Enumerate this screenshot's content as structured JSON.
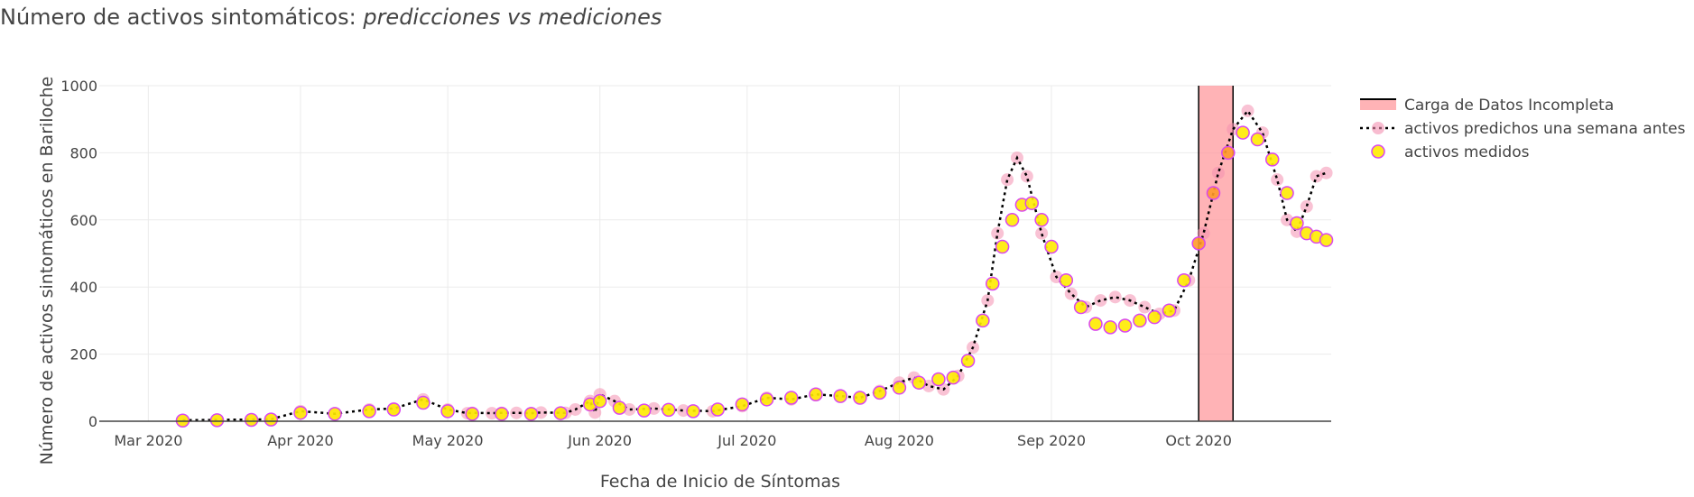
{
  "chart_data": {
    "type": "line",
    "title": "Número de activos sintomáticos: ",
    "title_italic": "predicciones vs mediciones",
    "xlabel": "Fecha de Inicio de Síntomas",
    "ylabel": "Número de activos sintomáticos en Bariloche",
    "x_axis_type": "date",
    "xlim": [
      "2020-02-20",
      "2020-10-28"
    ],
    "ylim": [
      0,
      1000
    ],
    "yticks": [
      0,
      200,
      400,
      600,
      800,
      1000
    ],
    "xticks": [
      {
        "date": "2020-03-01",
        "label": "Mar 2020"
      },
      {
        "date": "2020-04-01",
        "label": "Apr 2020"
      },
      {
        "date": "2020-05-01",
        "label": "May 2020"
      },
      {
        "date": "2020-06-01",
        "label": "Jun 2020"
      },
      {
        "date": "2020-07-01",
        "label": "Jul 2020"
      },
      {
        "date": "2020-08-01",
        "label": "Aug 2020"
      },
      {
        "date": "2020-09-01",
        "label": "Sep 2020"
      },
      {
        "date": "2020-10-01",
        "label": "Oct 2020"
      }
    ],
    "grid": true,
    "legend_position": "top-right",
    "shaded_region": {
      "name": "Carga de Datos Incompleta",
      "x_start": "2020-10-01",
      "x_end": "2020-10-08",
      "color": "#ff9a9e"
    },
    "series": [
      {
        "name": "activos predichos una semana antes",
        "style": "dotted-line-with-markers",
        "line_color": "#000000",
        "marker_color": "#f48fb1",
        "points": [
          [
            "2020-03-08",
            3
          ],
          [
            "2020-03-15",
            4
          ],
          [
            "2020-03-22",
            5
          ],
          [
            "2020-03-26",
            6
          ],
          [
            "2020-04-01",
            30
          ],
          [
            "2020-04-08",
            22
          ],
          [
            "2020-04-15",
            35
          ],
          [
            "2020-04-20",
            38
          ],
          [
            "2020-04-26",
            65
          ],
          [
            "2020-05-01",
            35
          ],
          [
            "2020-05-06",
            25
          ],
          [
            "2020-05-12",
            25
          ],
          [
            "2020-05-18",
            24
          ],
          [
            "2020-05-24",
            25
          ],
          [
            "2020-05-31",
            26
          ],
          [
            "2020-05-05",
            24
          ],
          [
            "2020-05-10",
            24
          ],
          [
            "2020-05-15",
            25
          ],
          [
            "2020-05-20",
            26
          ],
          [
            "2020-05-25",
            25
          ],
          [
            "2020-05-27",
            35
          ],
          [
            "2020-05-30",
            60
          ],
          [
            "2020-06-01",
            80
          ],
          [
            "2020-06-04",
            60
          ],
          [
            "2020-06-07",
            35
          ],
          [
            "2020-06-12",
            38
          ],
          [
            "2020-06-18",
            32
          ],
          [
            "2020-06-24",
            30
          ],
          [
            "2020-06-30",
            45
          ],
          [
            "2020-07-05",
            70
          ],
          [
            "2020-07-10",
            65
          ],
          [
            "2020-07-15",
            80
          ],
          [
            "2020-07-20",
            75
          ],
          [
            "2020-07-24",
            70
          ],
          [
            "2020-07-28",
            90
          ],
          [
            "2020-08-01",
            115
          ],
          [
            "2020-08-04",
            130
          ],
          [
            "2020-08-07",
            105
          ],
          [
            "2020-08-10",
            95
          ],
          [
            "2020-08-13",
            135
          ],
          [
            "2020-08-16",
            220
          ],
          [
            "2020-08-19",
            360
          ],
          [
            "2020-08-21",
            560
          ],
          [
            "2020-08-23",
            720
          ],
          [
            "2020-08-25",
            785
          ],
          [
            "2020-08-27",
            730
          ],
          [
            "2020-08-30",
            560
          ],
          [
            "2020-09-02",
            430
          ],
          [
            "2020-09-05",
            380
          ],
          [
            "2020-09-08",
            340
          ],
          [
            "2020-09-11",
            360
          ],
          [
            "2020-09-14",
            370
          ],
          [
            "2020-09-17",
            360
          ],
          [
            "2020-09-20",
            340
          ],
          [
            "2020-09-23",
            320
          ],
          [
            "2020-09-26",
            330
          ],
          [
            "2020-09-29",
            420
          ],
          [
            "2020-10-02",
            560
          ],
          [
            "2020-10-05",
            740
          ],
          [
            "2020-10-08",
            870
          ],
          [
            "2020-10-11",
            925
          ],
          [
            "2020-10-14",
            860
          ],
          [
            "2020-10-17",
            720
          ],
          [
            "2020-10-19",
            600
          ],
          [
            "2020-10-21",
            565
          ],
          [
            "2020-10-23",
            640
          ],
          [
            "2020-10-25",
            730
          ],
          [
            "2020-10-27",
            740
          ]
        ]
      },
      {
        "name": "activos medidos",
        "style": "markers",
        "marker_color": "#ffeb00",
        "marker_edge": "#d946ef",
        "points": [
          [
            "2020-03-08",
            2
          ],
          [
            "2020-03-15",
            3
          ],
          [
            "2020-03-22",
            4
          ],
          [
            "2020-03-26",
            5
          ],
          [
            "2020-04-01",
            25
          ],
          [
            "2020-04-08",
            22
          ],
          [
            "2020-04-15",
            30
          ],
          [
            "2020-04-20",
            35
          ],
          [
            "2020-04-26",
            55
          ],
          [
            "2020-05-01",
            30
          ],
          [
            "2020-05-06",
            22
          ],
          [
            "2020-05-12",
            22
          ],
          [
            "2020-05-18",
            22
          ],
          [
            "2020-05-24",
            24
          ],
          [
            "2020-05-30",
            50
          ],
          [
            "2020-06-01",
            60
          ],
          [
            "2020-06-05",
            40
          ],
          [
            "2020-06-10",
            32
          ],
          [
            "2020-06-15",
            34
          ],
          [
            "2020-06-20",
            30
          ],
          [
            "2020-06-25",
            35
          ],
          [
            "2020-06-30",
            50
          ],
          [
            "2020-07-05",
            65
          ],
          [
            "2020-07-10",
            70
          ],
          [
            "2020-07-15",
            80
          ],
          [
            "2020-07-20",
            75
          ],
          [
            "2020-07-24",
            70
          ],
          [
            "2020-07-28",
            85
          ],
          [
            "2020-08-01",
            100
          ],
          [
            "2020-08-05",
            115
          ],
          [
            "2020-08-09",
            125
          ],
          [
            "2020-08-12",
            130
          ],
          [
            "2020-08-15",
            180
          ],
          [
            "2020-08-18",
            300
          ],
          [
            "2020-08-20",
            410
          ],
          [
            "2020-08-22",
            520
          ],
          [
            "2020-08-24",
            600
          ],
          [
            "2020-08-26",
            645
          ],
          [
            "2020-08-28",
            650
          ],
          [
            "2020-08-30",
            600
          ],
          [
            "2020-09-01",
            520
          ],
          [
            "2020-09-04",
            420
          ],
          [
            "2020-09-07",
            340
          ],
          [
            "2020-09-10",
            290
          ],
          [
            "2020-09-13",
            280
          ],
          [
            "2020-09-16",
            285
          ],
          [
            "2020-09-19",
            300
          ],
          [
            "2020-09-22",
            310
          ],
          [
            "2020-09-25",
            330
          ],
          [
            "2020-09-28",
            420
          ],
          [
            "2020-10-01",
            530
          ],
          [
            "2020-10-04",
            680
          ],
          [
            "2020-10-07",
            800
          ],
          [
            "2020-10-10",
            860
          ],
          [
            "2020-10-13",
            840
          ],
          [
            "2020-10-16",
            780
          ],
          [
            "2020-10-19",
            680
          ],
          [
            "2020-10-21",
            590
          ],
          [
            "2020-10-23",
            560
          ],
          [
            "2020-10-25",
            550
          ],
          [
            "2020-10-27",
            540
          ]
        ]
      }
    ]
  }
}
